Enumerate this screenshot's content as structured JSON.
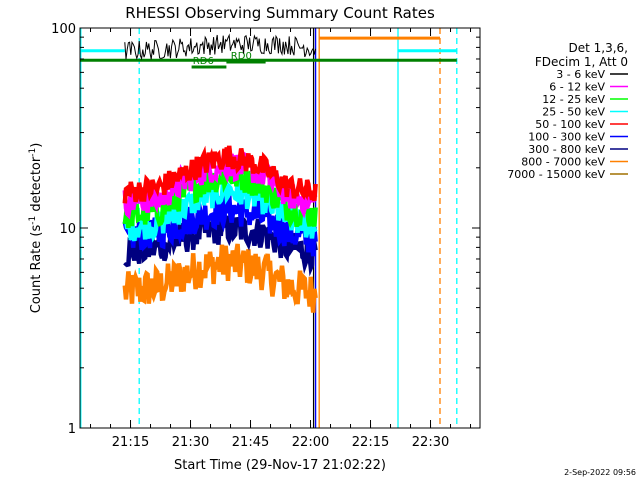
{
  "chart_data": {
    "type": "line",
    "title": "RHESSI Observing Summary Count Rates",
    "xlabel": "Start Time (29-Nov-17 21:02:22)",
    "ylabel_main": "Count Rate (s",
    "ylabel_sup1": "-1",
    "ylabel_mid": " detector",
    "ylabel_sup2": "-1",
    "ylabel_end": ")",
    "yscale": "log",
    "ylim": [
      1,
      100
    ],
    "xlim_minutes": [
      0,
      100
    ],
    "y_ticks": [
      {
        "value": 1,
        "label": "1"
      },
      {
        "value": 10,
        "label": "10"
      },
      {
        "value": 100,
        "label": "100"
      }
    ],
    "x_ticks": [
      {
        "minute": 12.63,
        "label": "21:15"
      },
      {
        "minute": 27.63,
        "label": "21:30"
      },
      {
        "minute": 42.63,
        "label": "21:45"
      },
      {
        "minute": 57.63,
        "label": "22:00"
      },
      {
        "minute": 72.63,
        "label": "22:15"
      },
      {
        "minute": 87.63,
        "label": "22:30"
      }
    ],
    "legend_header": [
      "Det 1,3,6,",
      "FDecim 1, Att 0"
    ],
    "legend_placement": "right",
    "series": [
      {
        "name": "3 - 6 keV",
        "color": "#000000",
        "start": 11.2,
        "end": 58.9,
        "profile": [
          [
            11.2,
            77
          ],
          [
            20,
            78
          ],
          [
            35,
            83
          ],
          [
            50,
            83
          ],
          [
            58.9,
            79
          ]
        ],
        "noise": 0.05
      },
      {
        "name": "6 - 12 keV",
        "color": "#ff00ff",
        "start": 11.2,
        "end": 58.9,
        "profile": [
          [
            11.2,
            13.5
          ],
          [
            20,
            14
          ],
          [
            30,
            19
          ],
          [
            37,
            21
          ],
          [
            45,
            19
          ],
          [
            52,
            14.5
          ],
          [
            58.9,
            13.5
          ]
        ],
        "noise": 0.07
      },
      {
        "name": "12 - 25 keV",
        "color": "#00ff00",
        "start": 11.2,
        "end": 58.9,
        "profile": [
          [
            11.2,
            11.5
          ],
          [
            20,
            12
          ],
          [
            30,
            16.5
          ],
          [
            37,
            18.5
          ],
          [
            45,
            16.5
          ],
          [
            52,
            12.5
          ],
          [
            58.9,
            11.5
          ]
        ],
        "noise": 0.07
      },
      {
        "name": "25 - 50 keV",
        "color": "#00ffff",
        "start": 11.2,
        "end": 58.9,
        "profile": [
          [
            11.2,
            10
          ],
          [
            20,
            10.5
          ],
          [
            30,
            14
          ],
          [
            37,
            15.5
          ],
          [
            45,
            14
          ],
          [
            52,
            11
          ],
          [
            58.9,
            10
          ]
        ],
        "noise": 0.07
      },
      {
        "name": "50 - 100 keV",
        "color": "#ff0000",
        "start": 11.2,
        "end": 58.9,
        "profile": [
          [
            11.2,
            15
          ],
          [
            20,
            16
          ],
          [
            30,
            20.5
          ],
          [
            37,
            23
          ],
          [
            45,
            20.5
          ],
          [
            52,
            16
          ],
          [
            58.9,
            15
          ]
        ],
        "noise": 0.06
      },
      {
        "name": "100 - 300 keV",
        "color": "#0000ff",
        "start": 11.2,
        "end": 58.9,
        "profile": [
          [
            11.2,
            9
          ],
          [
            20,
            9.5
          ],
          [
            30,
            11.5
          ],
          [
            37,
            12.5
          ],
          [
            45,
            11.5
          ],
          [
            52,
            9.5
          ],
          [
            58.9,
            8.5
          ]
        ],
        "noise": 0.08
      },
      {
        "name": "300 - 800 keV",
        "color": "#000080",
        "start": 11.2,
        "end": 58.9,
        "profile": [
          [
            11.2,
            7.5
          ],
          [
            20,
            8
          ],
          [
            30,
            9.5
          ],
          [
            37,
            10
          ],
          [
            45,
            9.5
          ],
          [
            52,
            8
          ],
          [
            58.9,
            7.5
          ]
        ],
        "noise": 0.08
      },
      {
        "name": "800 - 7000 keV",
        "color": "#ff8000",
        "start": 11.2,
        "end": 58.9,
        "profile": [
          [
            11.2,
            4.8
          ],
          [
            20,
            5.1
          ],
          [
            30,
            6.3
          ],
          [
            37,
            6.8
          ],
          [
            45,
            6.2
          ],
          [
            52,
            5.1
          ],
          [
            58.9,
            4.7
          ]
        ],
        "noise": 0.1
      },
      {
        "name": "7000 - 15000 keV",
        "color": "#a07000",
        "start": 11.2,
        "end": 58.9,
        "profile": [
          [
            11.2,
            4.5
          ],
          [
            58.9,
            4.5
          ]
        ],
        "noise": 0.0
      }
    ],
    "attenuator_bars": [
      {
        "color": "#00ffff",
        "y": 77,
        "start": 0,
        "end": 11.2
      },
      {
        "color": "#00ffff",
        "y": 77,
        "start": 79.5,
        "end": 94.2
      },
      {
        "color": "#ff8000",
        "y": 89,
        "start": 59.8,
        "end": 90.0
      },
      {
        "color": "#008000",
        "y": 69,
        "start": 0,
        "end": 94.2
      }
    ],
    "flags": [
      {
        "label": "RD0",
        "color": "#008000",
        "start": 36.6,
        "end": 46.4,
        "label_minute": 37.7
      },
      {
        "label": "RD6",
        "color": "#008000",
        "start": 27.9,
        "end": 36.6,
        "label_minute": 28.2
      }
    ],
    "vlines": [
      {
        "minute": 0.2,
        "color": "#00ffff",
        "style": "solid"
      },
      {
        "minute": 14.8,
        "color": "#00ffff",
        "style": "dashed"
      },
      {
        "minute": 79.5,
        "color": "#00ffff",
        "style": "solid"
      },
      {
        "minute": 94.2,
        "color": "#00ffff",
        "style": "dashed"
      },
      {
        "minute": 59.8,
        "color": "#ff8000",
        "style": "solid"
      },
      {
        "minute": 90.0,
        "color": "#ff8000",
        "style": "dashed"
      },
      {
        "minute": 58.9,
        "color": "#0000ff",
        "style": "solid"
      },
      {
        "minute": 58.4,
        "color": "#000000",
        "style": "solid"
      }
    ],
    "footer_date": "2-Sep-2022 09:56"
  }
}
